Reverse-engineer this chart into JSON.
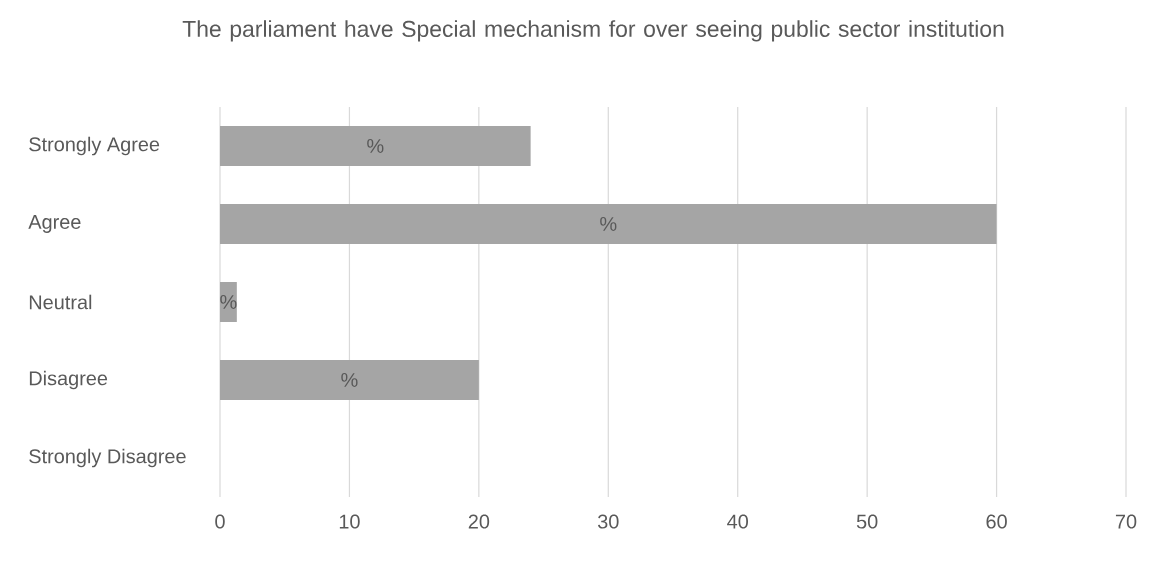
{
  "chart_data": {
    "type": "bar",
    "orientation": "horizontal",
    "title": "The parliament have Special mechanism for over seeing public sector institution",
    "categories": [
      "Strongly Agree",
      "Agree",
      "Neutral",
      "Disagree",
      "Strongly Disagree"
    ],
    "values": [
      24,
      60,
      1.3,
      20,
      0
    ],
    "value_labels": [
      "%",
      "%",
      "%",
      "%",
      null
    ],
    "color": "#a5a5a5",
    "xlim": [
      0,
      70
    ],
    "xticks": [
      0,
      10,
      20,
      30,
      40,
      50,
      60,
      70
    ],
    "grid": "x"
  }
}
